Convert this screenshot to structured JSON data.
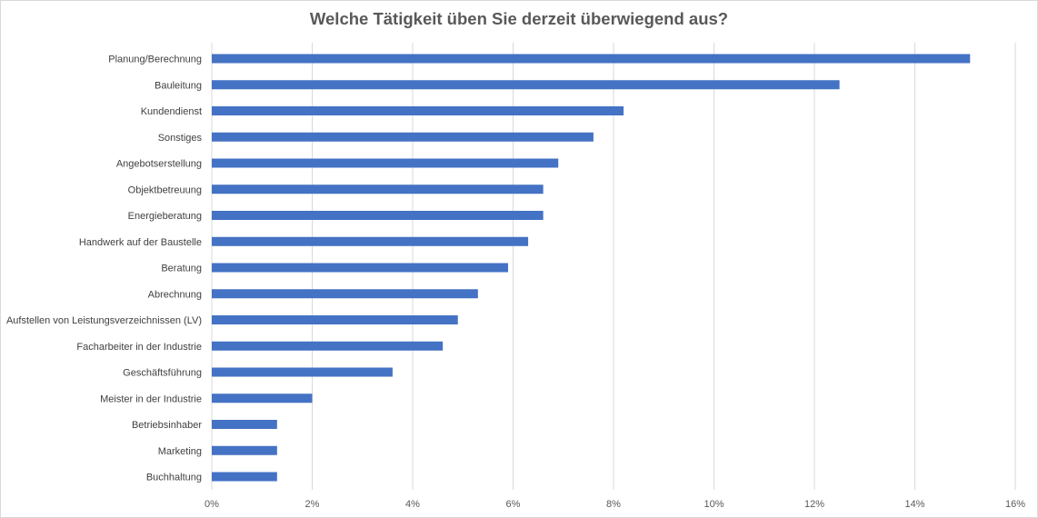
{
  "chart_data": {
    "type": "bar",
    "orientation": "horizontal",
    "title": "Welche Tätigkeit üben Sie derzeit überwiegend aus?",
    "categories": [
      "Planung/Berechnung",
      "Bauleitung",
      "Kundendienst",
      "Sonstiges",
      "Angebotserstellung",
      "Objektbetreuung",
      "Energieberatung",
      "Handwerk auf der Baustelle",
      "Beratung",
      "Abrechnung",
      "Aufstellen von Leistungsverzeichnissen (LV)",
      "Facharbeiter in der Industrie",
      "Geschäftsführung",
      "Meister in der Industrie",
      "Betriebsinhaber",
      "Marketing",
      "Buchhaltung"
    ],
    "values": [
      15.1,
      12.5,
      8.2,
      7.6,
      6.9,
      6.6,
      6.6,
      6.3,
      5.9,
      5.3,
      4.9,
      4.6,
      3.6,
      2.0,
      1.3,
      1.3,
      1.3
    ],
    "xlim": [
      0,
      16
    ],
    "xticks": [
      "0%",
      "2%",
      "4%",
      "6%",
      "8%",
      "10%",
      "12%",
      "14%",
      "16%"
    ],
    "grid": true,
    "legend": "none",
    "bar_color": "#4472C4"
  }
}
